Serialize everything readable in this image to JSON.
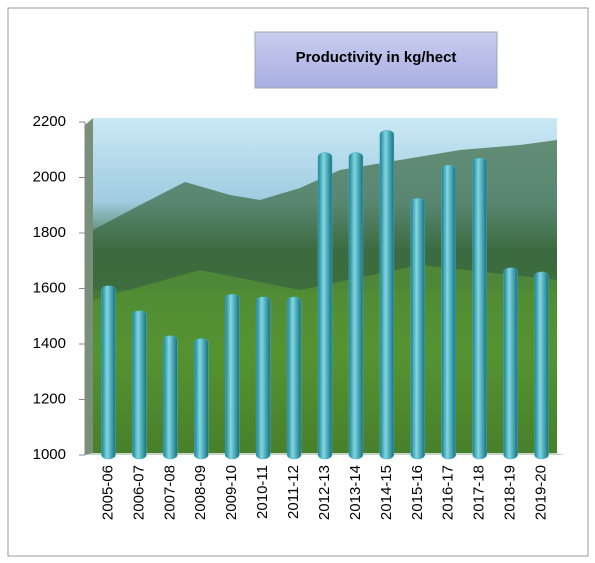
{
  "chart_data": {
    "type": "bar",
    "title": "Productivity in kg/hect",
    "categories": [
      "2005-06",
      "2006-07",
      "2007-08",
      "2008-09",
      "2009-10",
      "2010-11",
      "2011-12",
      "2012-13",
      "2013-14",
      "2014-15",
      "2015-16",
      "2016-17",
      "2017-18",
      "2018-19",
      "2019-20"
    ],
    "values": [
      1610,
      1520,
      1430,
      1420,
      1580,
      1570,
      1570,
      2090,
      2090,
      2170,
      1925,
      2045,
      2070,
      1675,
      1660
    ],
    "color": "#3fb3c4",
    "ylim": [
      1000,
      2200
    ],
    "yticks": [
      1000,
      1200,
      1400,
      1600,
      1800,
      2000,
      2200
    ],
    "grid": false
  }
}
